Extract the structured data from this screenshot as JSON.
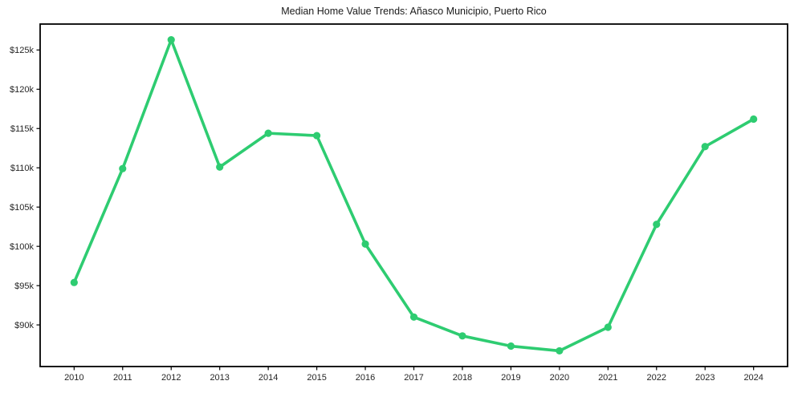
{
  "figure": {
    "background_color": "#ffffff",
    "spine_color": "#000000",
    "tick_label_color": "#262626"
  },
  "chart_data": {
    "type": "line",
    "title": "Median Home Value Trends: Añasco Municipio, Puerto Rico",
    "x": [
      2010,
      2011,
      2012,
      2013,
      2014,
      2015,
      2016,
      2017,
      2018,
      2019,
      2020,
      2021,
      2022,
      2023,
      2024
    ],
    "x_tick_labels": [
      "2010",
      "2011",
      "2012",
      "2013",
      "2014",
      "2015",
      "2016",
      "2017",
      "2018",
      "2019",
      "2020",
      "2021",
      "2022",
      "2023",
      "2024"
    ],
    "series": [
      {
        "name": "Median home value",
        "values_usd_k": [
          95.4,
          109.9,
          126.3,
          110.1,
          114.4,
          114.1,
          100.3,
          91.0,
          88.6,
          87.3,
          86.7,
          89.7,
          102.8,
          112.7,
          116.2
        ],
        "color": "#2ecc71",
        "marker": "circle"
      }
    ],
    "xlabel": "",
    "ylabel": "",
    "xlim": [
      2009.3,
      2024.7
    ],
    "ylim_usd_k": [
      84.7,
      128.3
    ],
    "y_ticks_usd_k": [
      90,
      95,
      100,
      105,
      110,
      115,
      120,
      125
    ],
    "y_tick_labels": [
      "$90k",
      "$95k",
      "$100k",
      "$105k",
      "$110k",
      "$115k",
      "$120k",
      "$125k"
    ],
    "grid": false,
    "legend": "none"
  }
}
